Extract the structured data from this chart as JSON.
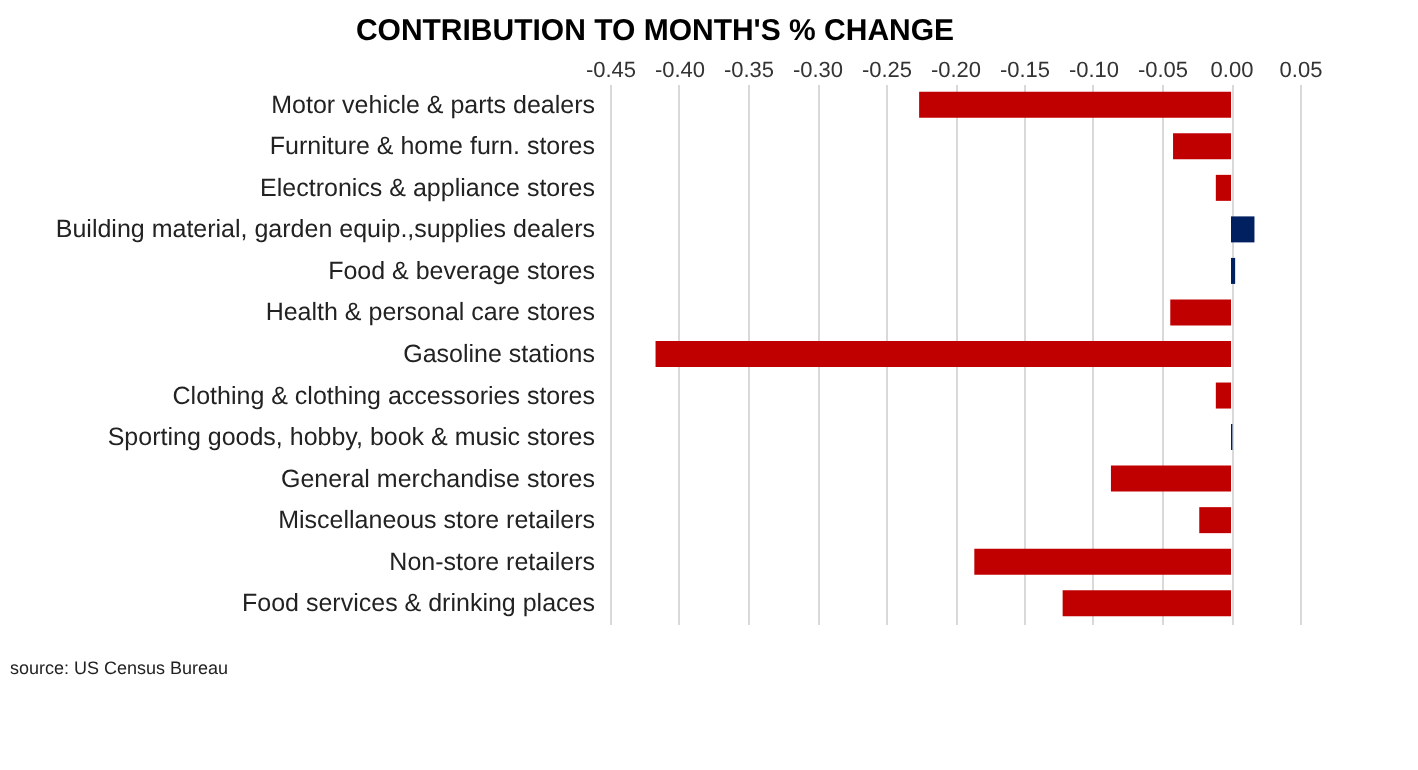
{
  "chart_data": {
    "type": "bar",
    "orientation": "horizontal",
    "title": "CONTRIBUTION TO MONTH'S % CHANGE",
    "categories": [
      "Motor vehicle & parts dealers",
      "Furniture & home furn. stores",
      "Electronics & appliance stores",
      "Building material, garden equip.,supplies dealers",
      "Food & beverage stores",
      "Health & personal care stores",
      "Gasoline stations",
      "Clothing & clothing accessories stores",
      "Sporting goods, hobby, book & music stores",
      "General merchandise stores",
      "Miscellaneous store retailers",
      "Non-store retailers",
      "Food services & drinking places"
    ],
    "values": [
      -0.226,
      -0.042,
      -0.011,
      0.017,
      0.003,
      -0.044,
      -0.417,
      -0.011,
      0.001,
      -0.087,
      -0.023,
      -0.186,
      -0.122
    ],
    "colors": [
      "#c00000",
      "#c00000",
      "#c00000",
      "#002060",
      "#002060",
      "#c00000",
      "#c00000",
      "#c00000",
      "#002060",
      "#c00000",
      "#c00000",
      "#c00000",
      "#c00000"
    ],
    "xlim": [
      -0.45,
      0.05
    ],
    "xticks": [
      {
        "value": -0.45,
        "label": "-0.45"
      },
      {
        "value": -0.4,
        "label": "-0.40"
      },
      {
        "value": -0.35,
        "label": "-0.35"
      },
      {
        "value": -0.3,
        "label": "-0.30"
      },
      {
        "value": -0.25,
        "label": "-0.25"
      },
      {
        "value": -0.2,
        "label": "-0.20"
      },
      {
        "value": -0.15,
        "label": "-0.15"
      },
      {
        "value": -0.1,
        "label": "-0.10"
      },
      {
        "value": -0.05,
        "label": "-0.05"
      },
      {
        "value": 0,
        "label": "0.00"
      },
      {
        "value": 0.05,
        "label": "0.05"
      }
    ],
    "grid": "x",
    "legend": false,
    "annotations": [
      "source: US Census Bureau"
    ]
  }
}
